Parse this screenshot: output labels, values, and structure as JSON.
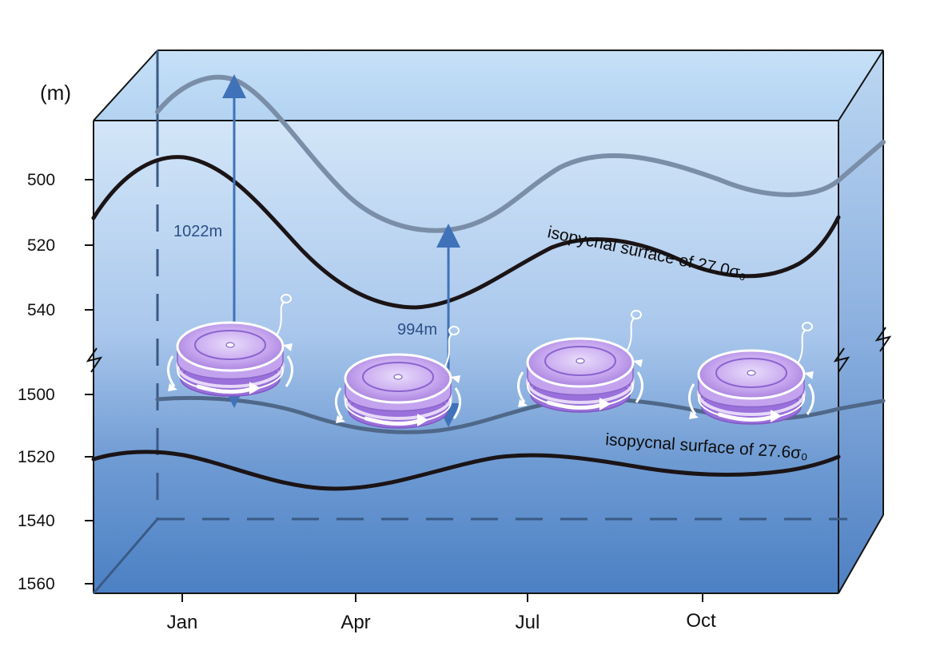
{
  "y_unit": "(m)",
  "y_ticks_upper": [
    "500",
    "520",
    "540"
  ],
  "y_ticks_lower": [
    "1500",
    "1520",
    "1540",
    "1560"
  ],
  "x_ticks": [
    "Jan",
    "Apr",
    "Jul",
    "Oct"
  ],
  "measurements": {
    "max_depth": "1022m",
    "min_depth": "994m"
  },
  "isopycnals": {
    "upper": "isopycnal surface of 27.0σ₀",
    "lower": "isopycnal surface of 27.6σ₀"
  },
  "colors": {
    "water_top": "#cde2f7",
    "water_mid": "#8fb4e0",
    "water_bottom": "#4a7fc3",
    "isopycnal_line": "#1b1416",
    "previous_isopycnal_line": "#7a8fa8",
    "arrow": "#3f72b8",
    "float_body": "#b28be0"
  },
  "floats_icon": "rotating-float-icon"
}
